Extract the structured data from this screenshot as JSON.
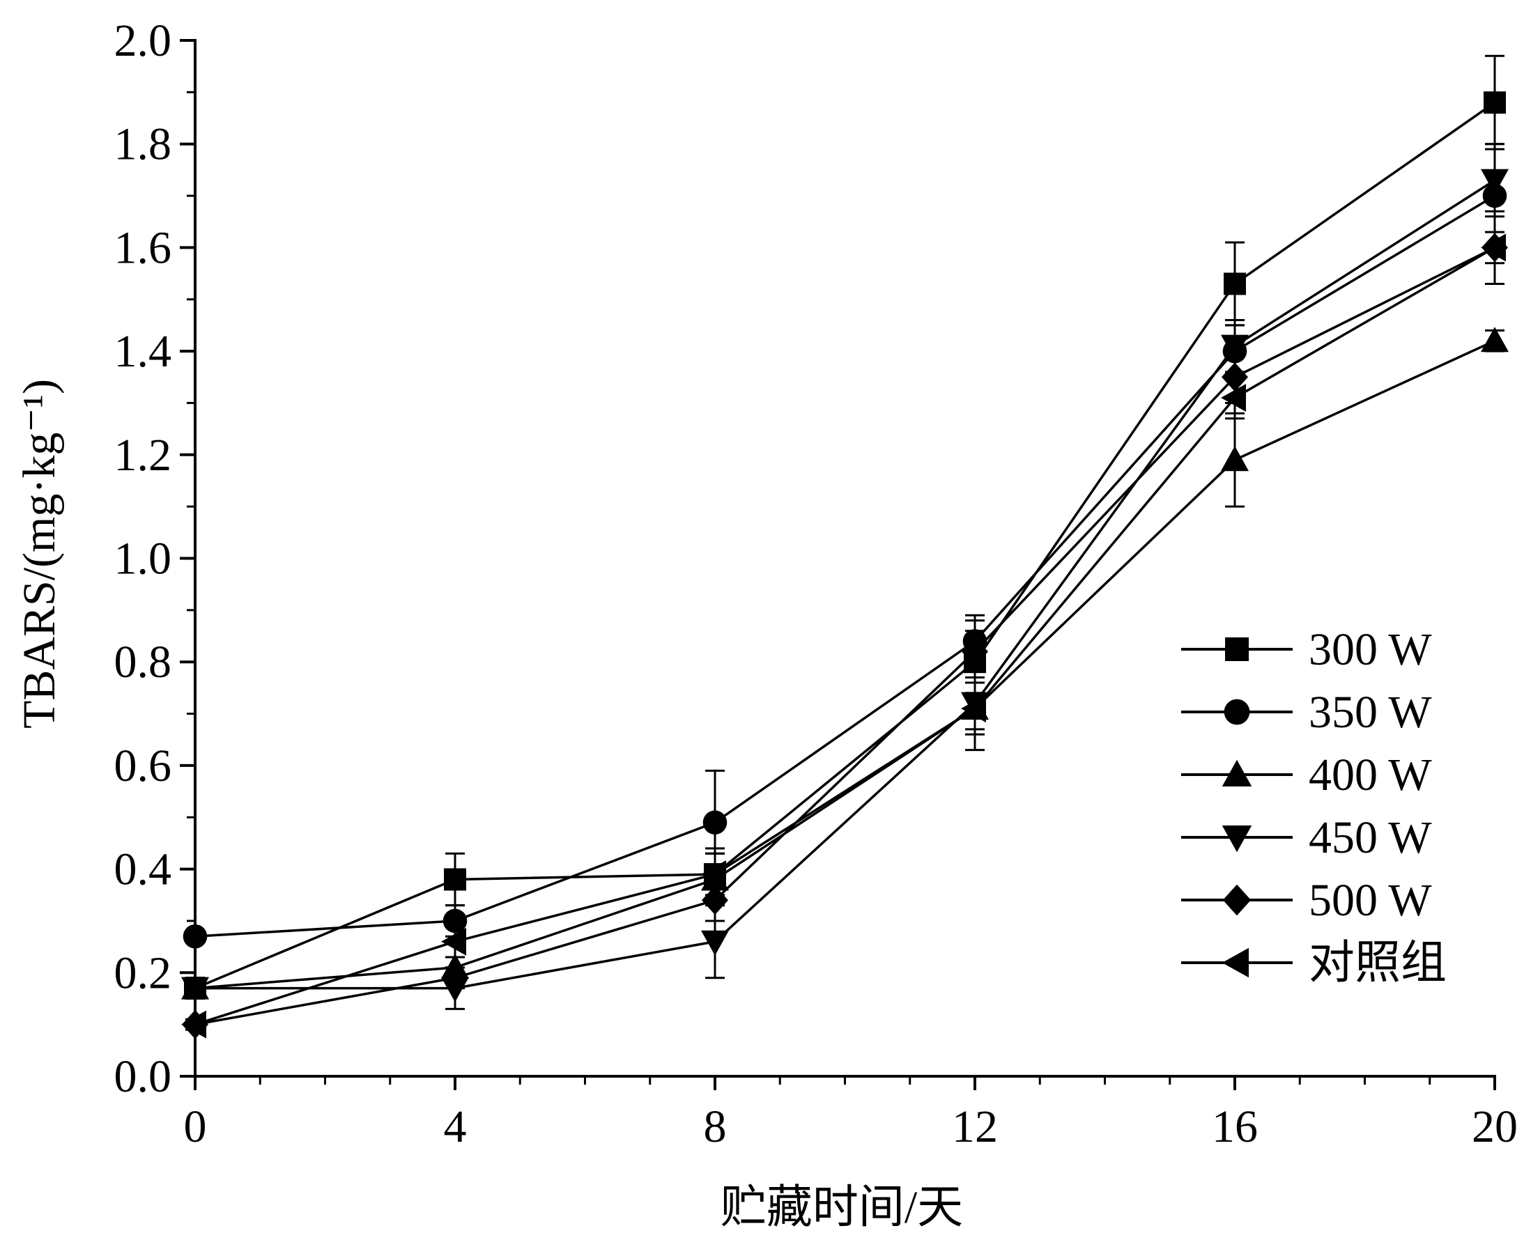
{
  "chart_data": {
    "type": "line",
    "title": "",
    "xlabel": "贮藏时间/天",
    "ylabel": "TBARS/(mg·kg⁻¹)",
    "x": [
      0,
      4,
      8,
      12,
      16,
      20
    ],
    "xticks": [
      "0",
      "4",
      "8",
      "12",
      "16",
      "20"
    ],
    "yticks": [
      "0.0",
      "0.2",
      "0.4",
      "0.6",
      "0.8",
      "1.0",
      "1.2",
      "1.4",
      "1.6",
      "1.8",
      "2.0"
    ],
    "xlim": [
      0,
      20
    ],
    "ylim": [
      0,
      2.0
    ],
    "grid": false,
    "legend_position": "bottom-right",
    "series": [
      {
        "name": "300 W",
        "marker": "square",
        "values": [
          0.17,
          0.38,
          0.39,
          0.8,
          1.53,
          1.88
        ],
        "errors": [
          0.02,
          0.05,
          0.05,
          0.06,
          0.08,
          0.09
        ]
      },
      {
        "name": "350 W",
        "marker": "circle",
        "values": [
          0.27,
          0.3,
          0.49,
          0.84,
          1.4,
          1.7
        ],
        "errors": [
          0.01,
          0.03,
          0.1,
          0.05,
          0.05,
          0.1
        ]
      },
      {
        "name": "400 W",
        "marker": "triangle-up",
        "values": [
          0.17,
          0.21,
          0.38,
          0.71,
          1.19,
          1.42
        ],
        "errors": [
          0.02,
          0.02,
          0.05,
          0.05,
          0.09,
          0.02
        ]
      },
      {
        "name": "450 W",
        "marker": "triangle-down",
        "values": [
          0.17,
          0.17,
          0.26,
          0.72,
          1.41,
          1.73
        ],
        "errors": [
          0.02,
          0.04,
          0.07,
          0.05,
          0.05,
          0.07
        ]
      },
      {
        "name": "500 W",
        "marker": "diamond",
        "values": [
          0.1,
          0.19,
          0.34,
          0.82,
          1.35,
          1.6
        ],
        "errors": [
          0.01,
          0.02,
          0.04,
          0.06,
          0.05,
          0.07
        ]
      },
      {
        "name": "对照组",
        "marker": "triangle-left",
        "values": [
          0.1,
          0.26,
          0.39,
          0.71,
          1.31,
          1.6
        ],
        "errors": [
          0.01,
          0.03,
          0.04,
          0.08,
          0.04,
          0.03
        ]
      }
    ]
  }
}
